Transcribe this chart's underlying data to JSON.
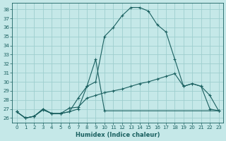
{
  "xlabel": "Humidex (Indice chaleur)",
  "bg_color": "#c5e8e8",
  "grid_color": "#9ecece",
  "line_color": "#1a6060",
  "xlim": [
    -0.5,
    23.5
  ],
  "ylim": [
    25.5,
    38.7
  ],
  "xticks": [
    0,
    1,
    2,
    3,
    4,
    5,
    6,
    7,
    8,
    9,
    10,
    11,
    12,
    13,
    14,
    15,
    16,
    17,
    18,
    19,
    20,
    21,
    22,
    23
  ],
  "yticks": [
    26,
    27,
    28,
    29,
    30,
    31,
    32,
    33,
    34,
    35,
    36,
    37,
    38
  ],
  "line1_x": [
    0,
    1,
    2,
    3,
    4,
    5,
    6,
    7,
    8,
    9,
    10,
    11,
    12,
    13,
    14,
    15,
    16,
    17,
    18,
    19,
    20,
    21,
    22,
    23
  ],
  "line1_y": [
    26.7,
    26.0,
    26.2,
    27.0,
    26.5,
    26.5,
    26.7,
    27.0,
    29.5,
    30.0,
    35.0,
    36.0,
    37.3,
    38.2,
    38.2,
    37.8,
    36.3,
    35.5,
    32.5,
    29.5,
    29.8,
    29.5,
    27.0,
    26.8
  ],
  "line2_x": [
    0,
    1,
    2,
    3,
    4,
    5,
    6,
    7,
    8,
    9,
    10,
    23
  ],
  "line2_y": [
    26.7,
    26.0,
    26.2,
    27.0,
    26.5,
    26.5,
    26.7,
    28.2,
    29.5,
    32.5,
    26.8,
    26.8
  ],
  "line3_x": [
    0,
    1,
    2,
    3,
    4,
    5,
    6,
    7,
    8,
    9,
    10,
    11,
    12,
    13,
    14,
    15,
    16,
    17,
    18,
    19,
    20,
    21,
    22,
    23
  ],
  "line3_y": [
    26.7,
    26.0,
    26.2,
    26.9,
    26.5,
    26.5,
    27.1,
    27.2,
    28.2,
    28.5,
    28.8,
    29.0,
    29.2,
    29.5,
    29.8,
    30.0,
    30.3,
    30.6,
    30.9,
    29.5,
    29.8,
    29.5,
    28.5,
    26.8
  ]
}
